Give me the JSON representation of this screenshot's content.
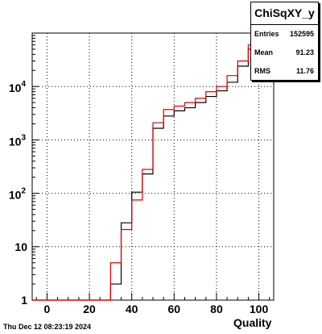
{
  "chart_data": {
    "type": "histogram",
    "title": "ChiSqXY_y",
    "xlabel": "Quality",
    "ylabel": "",
    "log_y": true,
    "grid": true,
    "xlim": [
      -7,
      107
    ],
    "ylim": [
      1,
      100000
    ],
    "xticks": [
      0,
      20,
      40,
      60,
      80,
      100
    ],
    "yticks": [
      {
        "value": 1,
        "label": "1"
      },
      {
        "value": 10,
        "label": "10"
      },
      {
        "value": 100,
        "label": "10",
        "exp": "2"
      },
      {
        "value": 1000,
        "label": "10",
        "exp": "3"
      },
      {
        "value": 10000,
        "label": "10",
        "exp": "4"
      }
    ],
    "bin_edges": [
      -7,
      0,
      5,
      10,
      15,
      20,
      25,
      30,
      35,
      40,
      45,
      50,
      55,
      60,
      65,
      70,
      75,
      80,
      85,
      90,
      95,
      100,
      105
    ],
    "series": [
      {
        "color": "#000000",
        "values": [
          1,
          1,
          1,
          1,
          1,
          1,
          1,
          2,
          28,
          105,
          230,
          1650,
          2800,
          3500,
          4000,
          5000,
          6500,
          8300,
          12000,
          24000,
          50000,
          100000
        ]
      },
      {
        "color": "#e00000",
        "values": [
          1,
          1,
          1,
          1,
          1,
          1,
          1,
          5,
          21,
          75,
          280,
          2100,
          3700,
          4300,
          5000,
          6000,
          8000,
          10000,
          16000,
          30000,
          60000,
          100000
        ]
      }
    ]
  },
  "stats": {
    "title": "ChiSqXY_y",
    "rows": [
      {
        "label": "Entries",
        "value": "152595"
      },
      {
        "label": "Mean",
        "value": "91.23"
      },
      {
        "label": "RMS",
        "value": "11.76"
      }
    ]
  },
  "footer": "Thu Dec 12 08:23:19 2024"
}
